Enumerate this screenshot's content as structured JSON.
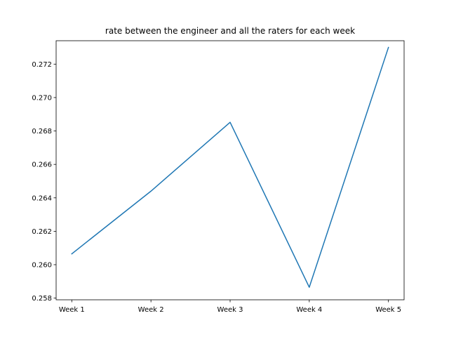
{
  "chart_data": {
    "type": "line",
    "title": "rate between the engineer and all the raters for each week",
    "xlabel": "",
    "ylabel": "",
    "categories": [
      "Week 1",
      "Week 2",
      "Week 3",
      "Week 4",
      "Week 5"
    ],
    "series": [
      {
        "values": [
          0.26065,
          0.2644,
          0.26852,
          0.25865,
          0.273
        ],
        "color": "#1f77b4"
      }
    ],
    "ylim": [
      0.2579,
      0.2734
    ],
    "yticks": [
      0.258,
      0.26,
      0.262,
      0.264,
      0.266,
      0.268,
      0.27,
      0.272
    ],
    "ytick_labels": [
      "0.258",
      "0.260",
      "0.262",
      "0.264",
      "0.266",
      "0.268",
      "0.270",
      "0.272"
    ],
    "grid": false,
    "legend": "none"
  }
}
